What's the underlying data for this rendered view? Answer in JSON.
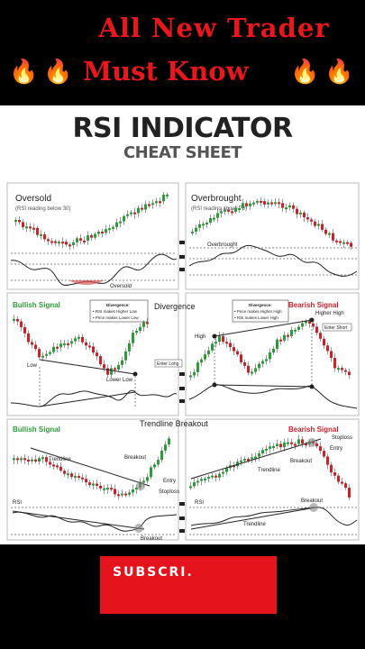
{
  "header": {
    "line1": "All New Trader",
    "line2": "Must Know",
    "fire": "🔥"
  },
  "sheet": {
    "title": "RSI INDICATOR",
    "subtitle": "CHEAT SHEET",
    "panels": {
      "oversold": {
        "title": "Oversold",
        "note": "(RSI reading below 30)",
        "rsi_label": "Oversold"
      },
      "overbought": {
        "title": "Overbrought",
        "note": "(RSI reading above 70)",
        "rsi_label": "Overbrought"
      },
      "divergence": {
        "title": "Divergence",
        "bullish_title": "Bullish Signal",
        "bullish_box_title": "Divergence:",
        "bullish_box_1": "• RSI makes Higher Low",
        "bullish_box_2": "• Price makes Lower Low",
        "low": "Low",
        "lower_low": "Lower Low",
        "enter_long": "Enter Long",
        "bearish_title": "Bearish Signal",
        "bearish_box_title": "Divergence:",
        "bearish_box_1": "• Price makes Higher High",
        "bearish_box_2": "• RSI makes Lower High",
        "high": "High",
        "higher_high": "Higher High",
        "enter_short": "Enter Short"
      },
      "trendline": {
        "title": "Trendline Breakout",
        "bullish_title": "Bullish Signal",
        "bearish_title": "Bearish Signal",
        "trendline": "Trendline",
        "breakout": "Breakout",
        "entry": "Entry",
        "stoploss": "Stoploss",
        "rsi": "RSI"
      }
    }
  },
  "subscribe": {
    "label": "SUBSCRI."
  },
  "colors": {
    "accent": "#e5131c",
    "bull": "#2e9b3a",
    "bear": "#c8232c"
  }
}
